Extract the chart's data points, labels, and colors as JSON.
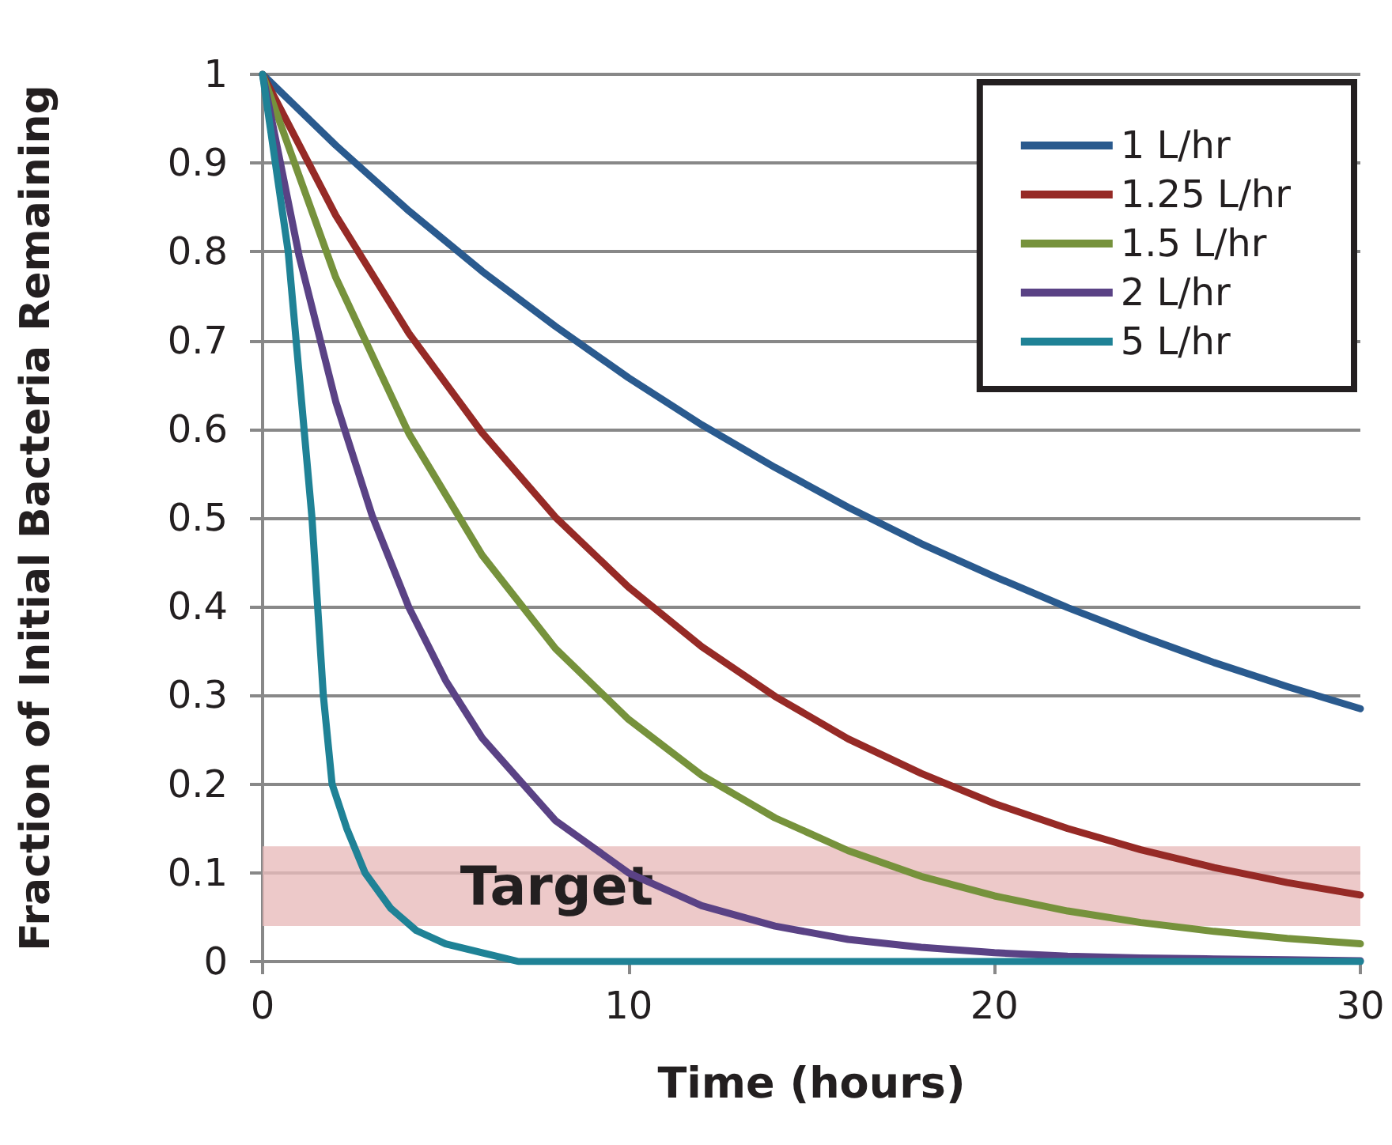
{
  "chart_data": {
    "type": "line",
    "xlabel": "Time (hours)",
    "ylabel": "Fraction of Initial Bacteria Remaining",
    "xlim": [
      0,
      30
    ],
    "xticks": [
      0,
      10,
      20,
      30
    ],
    "ylim": [
      0,
      1
    ],
    "yticks": [
      0,
      0.1,
      0.2,
      0.3,
      0.4,
      0.5,
      0.6,
      0.7,
      0.8,
      0.9,
      1
    ],
    "grid": "y",
    "legend": "top right",
    "marker": "none",
    "line_style": "solid",
    "bands": [
      {
        "axis": "y",
        "from": 0.04,
        "to": 0.13,
        "label": "Target",
        "color": "#e8bcbc"
      }
    ],
    "series": [
      {
        "name": "1 L/hr",
        "color": "#2a5a8e",
        "x": [
          0,
          2,
          4,
          6,
          8,
          10,
          12,
          14,
          16,
          18,
          20,
          22,
          24,
          26,
          28,
          30
        ],
        "values": [
          1,
          0.92,
          0.846,
          0.778,
          0.716,
          0.658,
          0.605,
          0.557,
          0.512,
          0.471,
          0.434,
          0.399,
          0.367,
          0.337,
          0.31,
          0.285
        ]
      },
      {
        "name": "1.25 L/hr",
        "color": "#962a26",
        "x": [
          0,
          2,
          4,
          6,
          8,
          10,
          12,
          14,
          16,
          18,
          20,
          22,
          24,
          26,
          28,
          30
        ],
        "values": [
          1,
          0.841,
          0.708,
          0.596,
          0.501,
          0.422,
          0.355,
          0.299,
          0.251,
          0.212,
          0.178,
          0.15,
          0.126,
          0.106,
          0.089,
          0.075
        ]
      },
      {
        "name": "1.5 L/hr",
        "color": "#76923c",
        "x": [
          0,
          2,
          4,
          6,
          8,
          10,
          12,
          14,
          16,
          18,
          20,
          22,
          24,
          26,
          28,
          30
        ],
        "values": [
          1,
          0.771,
          0.595,
          0.458,
          0.353,
          0.273,
          0.21,
          0.162,
          0.125,
          0.096,
          0.074,
          0.057,
          0.044,
          0.034,
          0.026,
          0.02
        ]
      },
      {
        "name": "2 L/hr",
        "color": "#5a4285",
        "x": [
          0,
          1,
          2,
          3,
          4,
          5,
          6,
          8,
          10,
          12,
          14,
          16,
          18,
          20,
          22,
          24,
          26,
          28,
          30
        ],
        "values": [
          1,
          0.795,
          0.631,
          0.502,
          0.399,
          0.317,
          0.252,
          0.159,
          0.1,
          0.063,
          0.04,
          0.025,
          0.016,
          0.01,
          0.006,
          0.004,
          0.003,
          0.002,
          0.001
        ]
      },
      {
        "name": "5 L/hr",
        "color": "#1f8296",
        "x": [
          0,
          0.7,
          1.35,
          1.66,
          1.9,
          2.3,
          2.8,
          3.5,
          4.2,
          5,
          6,
          7,
          8,
          10,
          15,
          20,
          25,
          30
        ],
        "values": [
          1,
          0.8,
          0.5,
          0.3,
          0.2,
          0.15,
          0.1,
          0.06,
          0.035,
          0.02,
          0.01,
          0,
          0,
          0,
          0,
          0,
          0,
          0
        ]
      }
    ]
  }
}
